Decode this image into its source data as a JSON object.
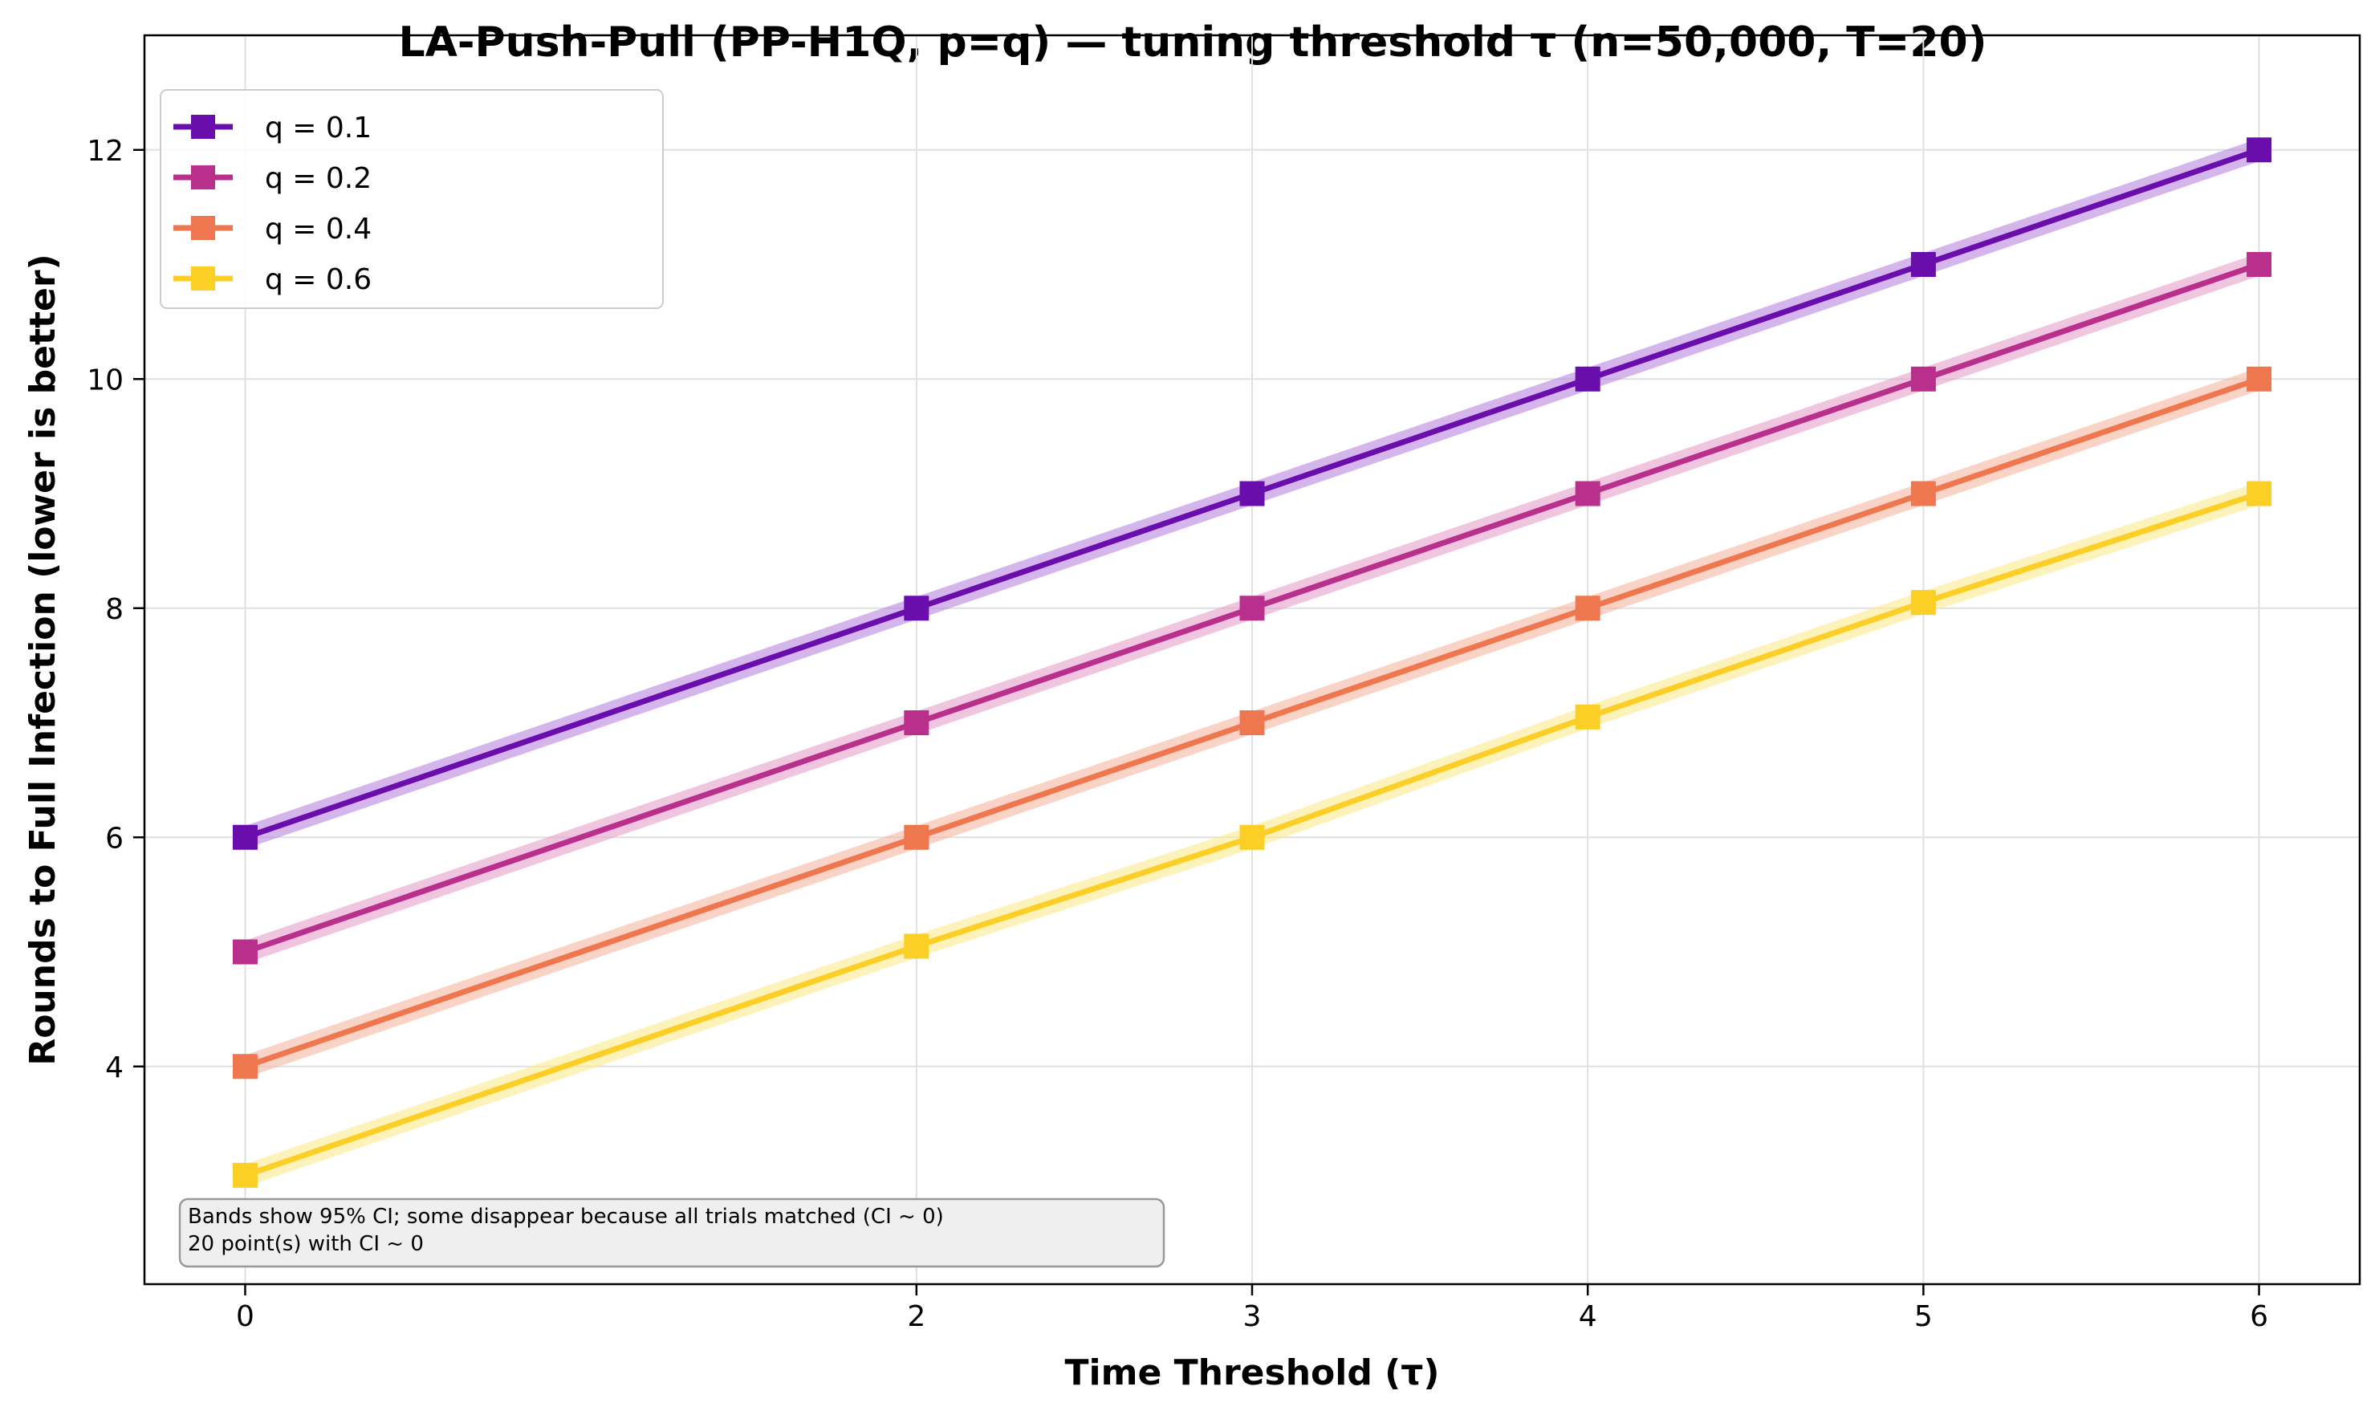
{
  "chart_data": {
    "type": "line",
    "title": "LA-Push-Pull (PP-H1Q, p=q) — tuning threshold τ (n=50,000, T=20)",
    "xlabel": "Time Threshold (τ)",
    "ylabel": "Rounds to Full Infection (lower is better)",
    "x": [
      0,
      2,
      3,
      4,
      5,
      6
    ],
    "xlim": [
      -0.3,
      6.3
    ],
    "ylim": [
      2.1,
      13.0
    ],
    "xticks": [
      0,
      2,
      3,
      4,
      5,
      6
    ],
    "yticks": [
      4,
      6,
      8,
      10,
      12
    ],
    "grid": true,
    "legend_position": "upper-left",
    "marker": "square",
    "series": [
      {
        "name": "q = 0.1",
        "color": "#6a0dad",
        "band_color": "#b784e0",
        "values": [
          6,
          8,
          9,
          10,
          11,
          12
        ]
      },
      {
        "name": "q = 0.2",
        "color": "#b8308c",
        "band_color": "#e69ecb",
        "values": [
          5,
          7,
          8,
          9,
          10,
          11
        ]
      },
      {
        "name": "q = 0.4",
        "color": "#ee7750",
        "band_color": "#f7b6a1",
        "values": [
          4,
          6,
          7,
          8,
          9,
          10
        ]
      },
      {
        "name": "q = 0.6",
        "color": "#fbcf25",
        "band_color": "#fde98e",
        "values": [
          3.05,
          5.05,
          6,
          7.05,
          8.05,
          9
        ]
      }
    ],
    "annotation": {
      "lines": [
        "Bands show 95% CI; some disappear because all trials matched (CI ~ 0)",
        "20 point(s) with CI ~ 0"
      ]
    }
  }
}
